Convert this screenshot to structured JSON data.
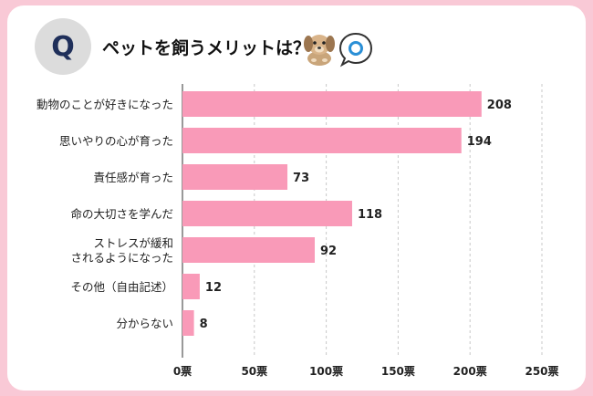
{
  "header": {
    "q_label": "Q",
    "title": "ペットを飼うメリットは？",
    "icons": [
      "dog-icon",
      "speech-bubble-icon"
    ]
  },
  "colors": {
    "bar": "#f99ab8",
    "grid": "#c8c8c8",
    "badge": "#dcdcdc",
    "q_text": "#1f2f5a"
  },
  "chart_data": {
    "type": "bar",
    "orientation": "horizontal",
    "categories": [
      "動物のことが好きになった",
      "思いやりの心が育った",
      "責任感が育った",
      "命の大切さを学んだ",
      "ストレスが緩和\nされるようになった",
      "その他（自由記述）",
      "分からない"
    ],
    "values": [
      208,
      194,
      73,
      118,
      92,
      12,
      8
    ],
    "xlim": [
      0,
      250
    ],
    "xticks": [
      {
        "value": 0,
        "label": "0票"
      },
      {
        "value": 50,
        "label": "50票"
      },
      {
        "value": 100,
        "label": "100票"
      },
      {
        "value": 150,
        "label": "150票"
      },
      {
        "value": 200,
        "label": "200票"
      },
      {
        "value": 250,
        "label": "250票"
      }
    ],
    "grid": "vertical dashed",
    "title": "",
    "xlabel": "",
    "ylabel": ""
  }
}
